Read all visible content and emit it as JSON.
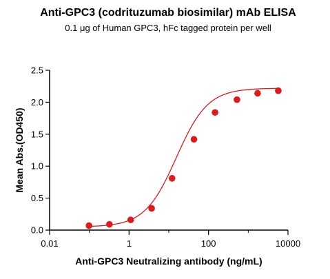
{
  "chart_data": {
    "type": "scatter",
    "title": "Anti-GPC3 (codrituzumab biosimilar) mAb ELISA",
    "subtitle": "0.1 μg of Human GPC3, hFc tagged protein per well",
    "xlabel": "Anti-GPC3 Neutralizing antibody (ng/mL)",
    "ylabel": "Mean Abs.(OD450)",
    "x_scale": "log",
    "xlim": [
      0.01,
      10000
    ],
    "ylim": [
      0,
      2.5
    ],
    "x_ticks": [
      0.01,
      1,
      100,
      10000
    ],
    "x_tick_labels": [
      "0.01",
      "1",
      "100",
      "10000"
    ],
    "y_ticks": [
      0.0,
      0.5,
      1.0,
      1.5,
      2.0,
      2.5
    ],
    "y_tick_labels": [
      "0.0",
      "0.5",
      "1.0",
      "1.5",
      "2.0",
      "2.5"
    ],
    "grid": false,
    "series": [
      {
        "color": "#e0191b",
        "x": [
          0.098,
          0.32,
          1.1,
          3.7,
          12.1,
          43,
          146,
          520,
          1720,
          5700
        ],
        "y": [
          0.07,
          0.09,
          0.16,
          0.34,
          0.81,
          1.42,
          1.84,
          2.04,
          2.14,
          2.18
        ],
        "fit": {
          "model": "4PL",
          "bottom": 0.05,
          "top": 2.22,
          "ec50": 15.5,
          "hill": 1.1
        }
      }
    ]
  }
}
